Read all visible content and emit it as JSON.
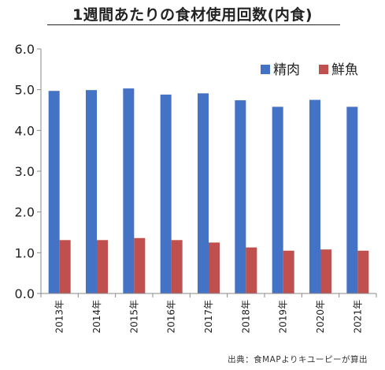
{
  "title": "1週間あたりの食材使用回数(内食)",
  "source": "出典：食MAPよりキユーピーが算出",
  "chart_data": {
    "type": "bar",
    "categories": [
      "2013年",
      "2014年",
      "2015年",
      "2016年",
      "2017年",
      "2018年",
      "2019年",
      "2020年",
      "2021年"
    ],
    "series": [
      {
        "name": "精肉",
        "color": "#4472C4",
        "values": [
          4.97,
          4.99,
          5.03,
          4.88,
          4.91,
          4.74,
          4.58,
          4.75,
          4.58
        ]
      },
      {
        "name": "鮮魚",
        "color": "#C0504D",
        "values": [
          1.31,
          1.31,
          1.36,
          1.31,
          1.25,
          1.13,
          1.05,
          1.08,
          1.05
        ]
      }
    ],
    "yticks": [
      "0.0",
      "1.0",
      "2.0",
      "3.0",
      "4.0",
      "5.0",
      "6.0"
    ],
    "ylim": [
      0,
      6
    ],
    "grid": false,
    "legend": "top-right"
  }
}
